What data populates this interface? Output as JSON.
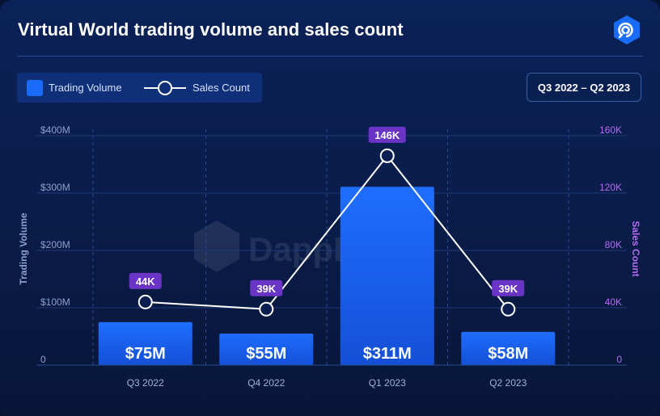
{
  "header": {
    "title": "Virtual World trading volume and sales count",
    "period": "Q3 2022 – Q2 2023"
  },
  "legend": {
    "volume_label": "Trading Volume",
    "sales_label": "Sales Count"
  },
  "watermark": "DappRadar",
  "colors": {
    "bar": "#1a6cff",
    "line": "#ffffff",
    "sales_badge": "#6a35c7",
    "left_axis": "#8aa0cf",
    "right_axis": "#b56cf2"
  },
  "chart_data": {
    "type": "bar",
    "title": "Virtual World trading volume and sales count",
    "categories": [
      "Q3 2022",
      "Q4 2022",
      "Q1 2023",
      "Q2 2023"
    ],
    "series": [
      {
        "name": "Trading Volume",
        "type": "bar",
        "axis": "left",
        "values": [
          75,
          55,
          311,
          58
        ],
        "labels": [
          "$75M",
          "$55M",
          "$311M",
          "$58M"
        ]
      },
      {
        "name": "Sales Count",
        "type": "line",
        "axis": "right",
        "values": [
          44,
          39,
          146,
          39
        ],
        "labels": [
          "44K",
          "39K",
          "146K",
          "39K"
        ]
      }
    ],
    "ylabel": "Trading Volume",
    "ylabel_right": "Sales Count",
    "ylim": [
      0,
      400
    ],
    "ylim_right": [
      0,
      160
    ],
    "yticks": [
      "0",
      "$100M",
      "$200M",
      "$300M",
      "$400M"
    ],
    "yticks_right": [
      "0",
      "40K",
      "80K",
      "120K",
      "160K"
    ],
    "grid": true,
    "legend_position": "top-left"
  }
}
